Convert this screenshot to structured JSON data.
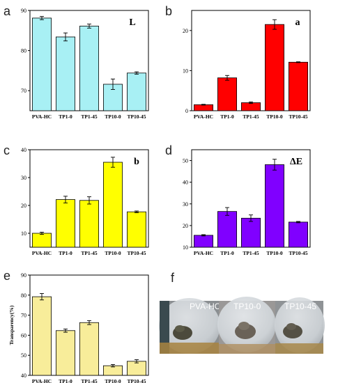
{
  "chart_data": [
    {
      "panel_label": "a",
      "type": "bar",
      "inset_label": "L",
      "categories": [
        "PVA-HC",
        "TP1-0",
        "TP1-45",
        "TP10-0",
        "TP10-45"
      ],
      "values": [
        88.1,
        83.4,
        86.1,
        71.6,
        74.4
      ],
      "errors": [
        0.4,
        1.0,
        0.5,
        1.3,
        0.3
      ],
      "ylim": [
        65,
        90
      ],
      "yticks": [
        "70",
        "80",
        "90"
      ],
      "ytick_values": [
        70,
        80,
        90
      ],
      "ylabel": "",
      "color": "#a8f0f4"
    },
    {
      "panel_label": "b",
      "type": "bar",
      "inset_label": "a",
      "categories": [
        "PVA-HC",
        "TP1-0",
        "TP1-45",
        "TP10-0",
        "TP10-45"
      ],
      "values": [
        1.5,
        8.2,
        2.0,
        21.5,
        12.1
      ],
      "errors": [
        0.1,
        0.6,
        0.2,
        1.2,
        0.1
      ],
      "ylim": [
        0,
        25
      ],
      "yticks": [
        "0",
        "10",
        "20"
      ],
      "ytick_values": [
        0,
        10,
        20
      ],
      "ylabel": "",
      "color": "#ff0000"
    },
    {
      "panel_label": "c",
      "type": "bar",
      "inset_label": "b",
      "categories": [
        "PVA-HC",
        "TP1-0",
        "TP1-45",
        "TP10-0",
        "TP10-45"
      ],
      "values": [
        10.0,
        22.1,
        21.8,
        35.5,
        17.7
      ],
      "errors": [
        0.4,
        1.2,
        1.3,
        1.8,
        0.3
      ],
      "ylim": [
        5,
        40
      ],
      "yticks": [
        "10",
        "20",
        "30",
        "40"
      ],
      "ytick_values": [
        10,
        20,
        30,
        40
      ],
      "ylabel": "",
      "color": "#ffff00"
    },
    {
      "panel_label": "d",
      "type": "bar",
      "inset_label": "ΔE",
      "categories": [
        "PVA-HC",
        "TP1-0",
        "TP1-45",
        "TP10-0",
        "TP10-45"
      ],
      "values": [
        15.5,
        26.5,
        23.4,
        48.1,
        21.6
      ],
      "errors": [
        0.3,
        1.8,
        1.5,
        2.5,
        0.3
      ],
      "ylim": [
        10,
        55
      ],
      "yticks": [
        "10",
        "20",
        "30",
        "40",
        "50"
      ],
      "ytick_values": [
        10,
        20,
        30,
        40,
        50
      ],
      "ylabel": "",
      "color": "#8000ff"
    },
    {
      "panel_label": "e",
      "type": "bar",
      "inset_label": "",
      "categories": [
        "PVA-HC",
        "TP1-0",
        "TP1-45",
        "TP10-0",
        "TP10-45"
      ],
      "values": [
        79.2,
        62.3,
        66.3,
        44.8,
        47.0
      ],
      "errors": [
        1.6,
        0.8,
        1.0,
        0.6,
        0.8
      ],
      "ylim": [
        40,
        90
      ],
      "yticks": [
        "40",
        "50",
        "60",
        "70",
        "80",
        "90"
      ],
      "ytick_values": [
        40,
        50,
        60,
        70,
        80,
        90
      ],
      "ylabel": "Transparency(%)",
      "color": "#f8ed9a"
    }
  ],
  "photo_panel": {
    "panel_label": "f",
    "labels": [
      "PVA-HC",
      "TP10-0",
      "TP10-45"
    ]
  }
}
